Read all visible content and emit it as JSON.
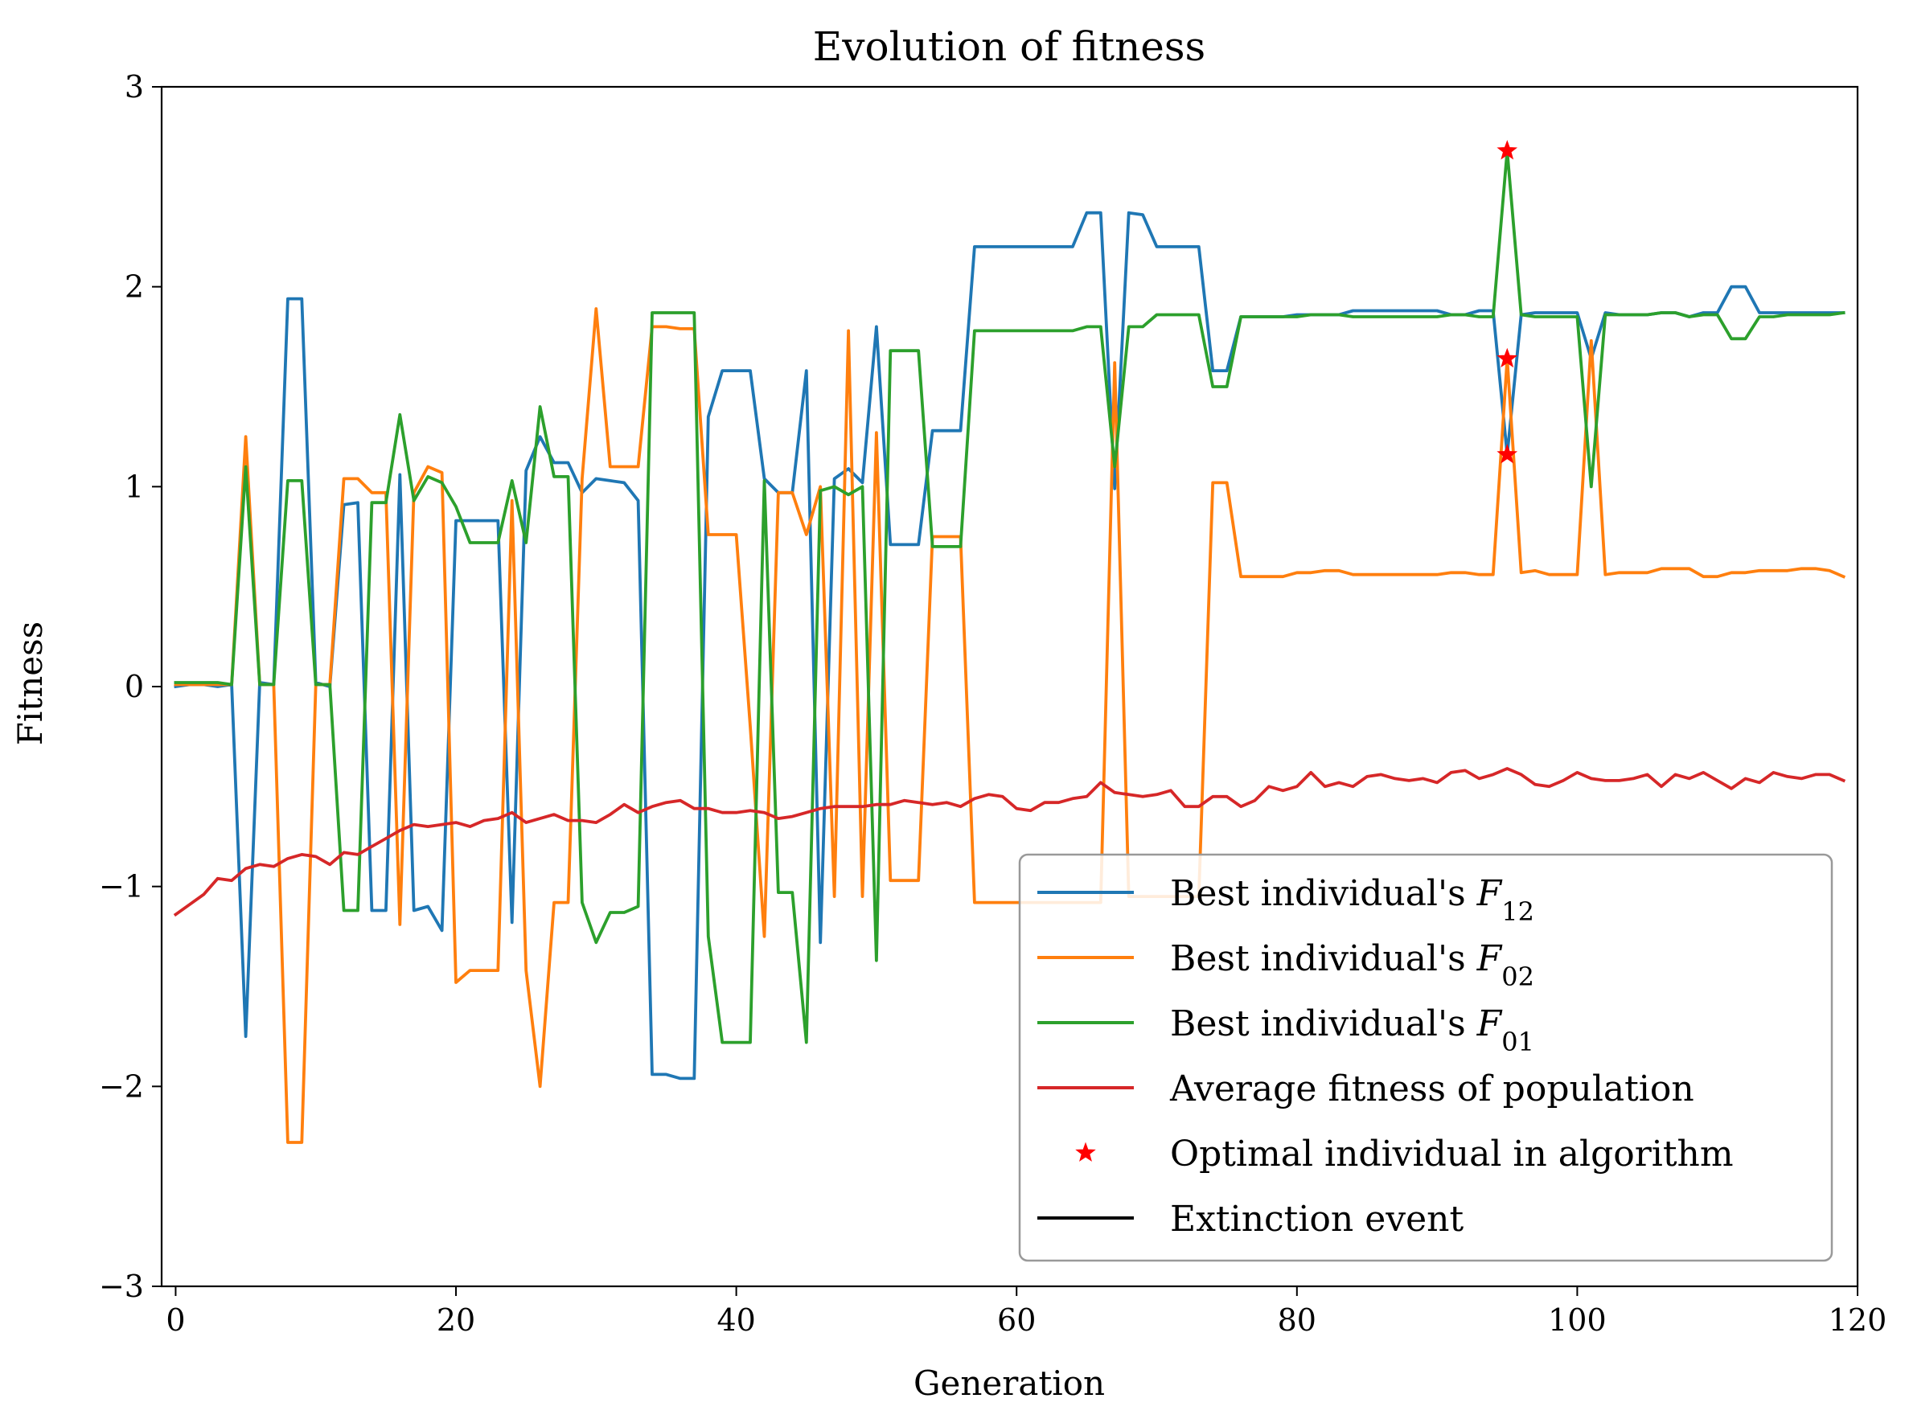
{
  "chart_data": {
    "type": "line",
    "title": "Evolution of fitness",
    "xlabel": "Generation",
    "ylabel": "Fitness",
    "xlim": [
      -1,
      120
    ],
    "ylim": [
      -3,
      3
    ],
    "xticks": [
      0,
      20,
      40,
      60,
      80,
      100,
      120
    ],
    "yticks": [
      -3,
      -2,
      -1,
      0,
      1,
      2,
      3
    ],
    "xtick_labels": [
      "0",
      "20",
      "40",
      "60",
      "80",
      "100",
      "120"
    ],
    "ytick_labels": [
      "−3",
      "−2",
      "−1",
      "0",
      "1",
      "2",
      "3"
    ],
    "grid": false,
    "legend_position": "lower-right",
    "series": [
      {
        "name_text": "Best individual's ",
        "name_symbol": "F",
        "name_subscript": "12",
        "color": "#1f77b4",
        "x": [
          0,
          1,
          2,
          3,
          4,
          5,
          6,
          7,
          8,
          9,
          10,
          11,
          12,
          13,
          14,
          15,
          16,
          17,
          18,
          19,
          20,
          21,
          22,
          23,
          24,
          25,
          26,
          27,
          28,
          29,
          30,
          31,
          32,
          33,
          34,
          35,
          36,
          37,
          38,
          39,
          40,
          41,
          42,
          43,
          44,
          45,
          46,
          47,
          48,
          49,
          50,
          51,
          52,
          53,
          54,
          55,
          56,
          57,
          58,
          59,
          60,
          61,
          62,
          63,
          64,
          65,
          66,
          67,
          68,
          69,
          70,
          71,
          72,
          73,
          74,
          75,
          76,
          77,
          78,
          79,
          80,
          81,
          82,
          83,
          84,
          85,
          86,
          87,
          88,
          89,
          90,
          91,
          92,
          93,
          94,
          95,
          96,
          97,
          98,
          99,
          100,
          101,
          102,
          103,
          104,
          105,
          106,
          107,
          108,
          109,
          110,
          111,
          112,
          113,
          114,
          115,
          116,
          117,
          118,
          119
        ],
        "y": [
          0.0,
          0.01,
          0.01,
          0.0,
          0.01,
          -1.75,
          0.02,
          0.01,
          1.94,
          1.94,
          0.02,
          0.0,
          0.91,
          0.92,
          -1.12,
          -1.12,
          1.06,
          -1.12,
          -1.1,
          -1.22,
          0.83,
          0.83,
          0.83,
          0.83,
          -1.18,
          1.08,
          1.25,
          1.12,
          1.12,
          0.97,
          1.04,
          1.03,
          1.02,
          0.93,
          -1.94,
          -1.94,
          -1.96,
          -1.96,
          1.35,
          1.58,
          1.58,
          1.58,
          1.04,
          0.97,
          0.97,
          1.58,
          -1.28,
          1.04,
          1.09,
          1.02,
          1.8,
          0.71,
          0.71,
          0.71,
          1.28,
          1.28,
          1.28,
          2.2,
          2.2,
          2.2,
          2.2,
          2.2,
          2.2,
          2.2,
          2.2,
          2.37,
          2.37,
          0.99,
          2.37,
          2.36,
          2.2,
          2.2,
          2.2,
          2.2,
          1.58,
          1.58,
          1.85,
          1.85,
          1.85,
          1.85,
          1.86,
          1.86,
          1.86,
          1.86,
          1.88,
          1.88,
          1.88,
          1.88,
          1.88,
          1.88,
          1.88,
          1.86,
          1.86,
          1.88,
          1.88,
          1.16,
          1.86,
          1.87,
          1.87,
          1.87,
          1.87,
          1.64,
          1.87,
          1.86,
          1.86,
          1.86,
          1.87,
          1.87,
          1.85,
          1.87,
          1.87,
          2.0,
          2.0,
          1.87,
          1.87,
          1.87,
          1.87,
          1.87,
          1.87,
          1.87
        ]
      },
      {
        "name_text": "Best individual's ",
        "name_symbol": "F",
        "name_subscript": "02",
        "color": "#ff7f0e",
        "x": [
          0,
          1,
          2,
          3,
          4,
          5,
          6,
          7,
          8,
          9,
          10,
          11,
          12,
          13,
          14,
          15,
          16,
          17,
          18,
          19,
          20,
          21,
          22,
          23,
          24,
          25,
          26,
          27,
          28,
          29,
          30,
          31,
          32,
          33,
          34,
          35,
          36,
          37,
          38,
          39,
          40,
          41,
          42,
          43,
          44,
          45,
          46,
          47,
          48,
          49,
          50,
          51,
          52,
          53,
          54,
          55,
          56,
          57,
          58,
          59,
          60,
          61,
          62,
          63,
          64,
          65,
          66,
          67,
          68,
          69,
          70,
          71,
          72,
          73,
          74,
          75,
          76,
          77,
          78,
          79,
          80,
          81,
          82,
          83,
          84,
          85,
          86,
          87,
          88,
          89,
          90,
          91,
          92,
          93,
          94,
          95,
          96,
          97,
          98,
          99,
          100,
          101,
          102,
          103,
          104,
          105,
          106,
          107,
          108,
          109,
          110,
          111,
          112,
          113,
          114,
          115,
          116,
          117,
          118,
          119
        ],
        "y": [
          0.01,
          0.01,
          0.01,
          0.01,
          0.01,
          1.25,
          0.01,
          0.01,
          -2.28,
          -2.28,
          0.01,
          0.01,
          1.04,
          1.04,
          0.97,
          0.97,
          -1.19,
          0.97,
          1.1,
          1.07,
          -1.48,
          -1.42,
          -1.42,
          -1.42,
          0.93,
          -1.42,
          -2.0,
          -1.08,
          -1.08,
          1.04,
          1.89,
          1.1,
          1.1,
          1.1,
          1.8,
          1.8,
          1.79,
          1.79,
          0.76,
          0.76,
          0.76,
          -0.2,
          -1.25,
          0.97,
          0.97,
          0.76,
          1.0,
          -1.05,
          1.78,
          -1.05,
          1.27,
          -0.97,
          -0.97,
          -0.97,
          0.75,
          0.75,
          0.75,
          -1.08,
          -1.08,
          -1.08,
          -1.08,
          -1.08,
          -1.08,
          -1.08,
          -1.08,
          -1.08,
          -1.08,
          1.62,
          -1.05,
          -1.05,
          -1.05,
          -1.05,
          -1.05,
          -1.05,
          1.02,
          1.02,
          0.55,
          0.55,
          0.55,
          0.55,
          0.57,
          0.57,
          0.58,
          0.58,
          0.56,
          0.56,
          0.56,
          0.56,
          0.56,
          0.56,
          0.56,
          0.57,
          0.57,
          0.56,
          0.56,
          1.64,
          0.57,
          0.58,
          0.56,
          0.56,
          0.56,
          1.73,
          0.56,
          0.57,
          0.57,
          0.57,
          0.59,
          0.59,
          0.59,
          0.55,
          0.55,
          0.57,
          0.57,
          0.58,
          0.58,
          0.58,
          0.59,
          0.59,
          0.58,
          0.55
        ]
      },
      {
        "name_text": "Best individual's ",
        "name_symbol": "F",
        "name_subscript": "01",
        "color": "#2ca02c",
        "x": [
          0,
          1,
          2,
          3,
          4,
          5,
          6,
          7,
          8,
          9,
          10,
          11,
          12,
          13,
          14,
          15,
          16,
          17,
          18,
          19,
          20,
          21,
          22,
          23,
          24,
          25,
          26,
          27,
          28,
          29,
          30,
          31,
          32,
          33,
          34,
          35,
          36,
          37,
          38,
          39,
          40,
          41,
          42,
          43,
          44,
          45,
          46,
          47,
          48,
          49,
          50,
          51,
          52,
          53,
          54,
          55,
          56,
          57,
          58,
          59,
          60,
          61,
          62,
          63,
          64,
          65,
          66,
          67,
          68,
          69,
          70,
          71,
          72,
          73,
          74,
          75,
          76,
          77,
          78,
          79,
          80,
          81,
          82,
          83,
          84,
          85,
          86,
          87,
          88,
          89,
          90,
          91,
          92,
          93,
          94,
          95,
          96,
          97,
          98,
          99,
          100,
          101,
          102,
          103,
          104,
          105,
          106,
          107,
          108,
          109,
          110,
          111,
          112,
          113,
          114,
          115,
          116,
          117,
          118,
          119
        ],
        "y": [
          0.02,
          0.02,
          0.02,
          0.02,
          0.01,
          1.1,
          0.01,
          0.01,
          1.03,
          1.03,
          0.01,
          0.01,
          -1.12,
          -1.12,
          0.92,
          0.92,
          1.36,
          0.93,
          1.05,
          1.02,
          0.9,
          0.72,
          0.72,
          0.72,
          1.03,
          0.72,
          1.4,
          1.05,
          1.05,
          -1.08,
          -1.28,
          -1.13,
          -1.13,
          -1.1,
          1.87,
          1.87,
          1.87,
          1.87,
          -1.25,
          -1.78,
          -1.78,
          -1.78,
          1.03,
          -1.03,
          -1.03,
          -1.78,
          0.98,
          1.0,
          0.96,
          1.0,
          -1.37,
          1.68,
          1.68,
          1.68,
          0.7,
          0.7,
          0.7,
          1.78,
          1.78,
          1.78,
          1.78,
          1.78,
          1.78,
          1.78,
          1.78,
          1.8,
          1.8,
          1.1,
          1.8,
          1.8,
          1.86,
          1.86,
          1.86,
          1.86,
          1.5,
          1.5,
          1.85,
          1.85,
          1.85,
          1.85,
          1.85,
          1.86,
          1.86,
          1.86,
          1.85,
          1.85,
          1.85,
          1.85,
          1.85,
          1.85,
          1.85,
          1.86,
          1.86,
          1.85,
          1.85,
          2.68,
          1.86,
          1.85,
          1.85,
          1.85,
          1.85,
          1.0,
          1.86,
          1.86,
          1.86,
          1.86,
          1.87,
          1.87,
          1.85,
          1.86,
          1.86,
          1.74,
          1.74,
          1.85,
          1.85,
          1.86,
          1.86,
          1.86,
          1.86,
          1.87
        ]
      },
      {
        "name": "Average fitness of population",
        "color": "#d62728",
        "x": [
          0,
          1,
          2,
          3,
          4,
          5,
          6,
          7,
          8,
          9,
          10,
          11,
          12,
          13,
          14,
          15,
          16,
          17,
          18,
          19,
          20,
          21,
          22,
          23,
          24,
          25,
          26,
          27,
          28,
          29,
          30,
          31,
          32,
          33,
          34,
          35,
          36,
          37,
          38,
          39,
          40,
          41,
          42,
          43,
          44,
          45,
          46,
          47,
          48,
          49,
          50,
          51,
          52,
          53,
          54,
          55,
          56,
          57,
          58,
          59,
          60,
          61,
          62,
          63,
          64,
          65,
          66,
          67,
          68,
          69,
          70,
          71,
          72,
          73,
          74,
          75,
          76,
          77,
          78,
          79,
          80,
          81,
          82,
          83,
          84,
          85,
          86,
          87,
          88,
          89,
          90,
          91,
          92,
          93,
          94,
          95,
          96,
          97,
          98,
          99,
          100,
          101,
          102,
          103,
          104,
          105,
          106,
          107,
          108,
          109,
          110,
          111,
          112,
          113,
          114,
          115,
          116,
          117,
          118,
          119
        ],
        "y": [
          -1.14,
          -1.09,
          -1.04,
          -0.96,
          -0.97,
          -0.91,
          -0.89,
          -0.9,
          -0.86,
          -0.84,
          -0.85,
          -0.89,
          -0.83,
          -0.84,
          -0.8,
          -0.76,
          -0.72,
          -0.69,
          -0.7,
          -0.69,
          -0.68,
          -0.7,
          -0.67,
          -0.66,
          -0.63,
          -0.68,
          -0.66,
          -0.64,
          -0.67,
          -0.67,
          -0.68,
          -0.64,
          -0.59,
          -0.63,
          -0.6,
          -0.58,
          -0.57,
          -0.61,
          -0.61,
          -0.63,
          -0.63,
          -0.62,
          -0.63,
          -0.66,
          -0.65,
          -0.63,
          -0.61,
          -0.6,
          -0.6,
          -0.6,
          -0.59,
          -0.59,
          -0.57,
          -0.58,
          -0.59,
          -0.58,
          -0.6,
          -0.56,
          -0.54,
          -0.55,
          -0.61,
          -0.62,
          -0.58,
          -0.58,
          -0.56,
          -0.55,
          -0.48,
          -0.53,
          -0.54,
          -0.55,
          -0.54,
          -0.52,
          -0.6,
          -0.6,
          -0.55,
          -0.55,
          -0.6,
          -0.57,
          -0.5,
          -0.52,
          -0.5,
          -0.43,
          -0.5,
          -0.48,
          -0.5,
          -0.45,
          -0.44,
          -0.46,
          -0.47,
          -0.46,
          -0.48,
          -0.43,
          -0.42,
          -0.46,
          -0.44,
          -0.41,
          -0.44,
          -0.49,
          -0.5,
          -0.47,
          -0.43,
          -0.46,
          -0.47,
          -0.47,
          -0.46,
          -0.44,
          -0.5,
          -0.44,
          -0.46,
          -0.43,
          -0.47,
          -0.51,
          -0.46,
          -0.48,
          -0.43,
          -0.45,
          -0.46,
          -0.44,
          -0.44,
          -0.47
        ]
      }
    ],
    "markers": {
      "name": "Optimal individual in algorithm",
      "color": "#ff0000",
      "x": [
        95,
        95,
        95
      ],
      "y": [
        2.68,
        1.64,
        1.16
      ]
    },
    "extra_legend": {
      "name": "Extinction event",
      "color": "#000000"
    }
  }
}
